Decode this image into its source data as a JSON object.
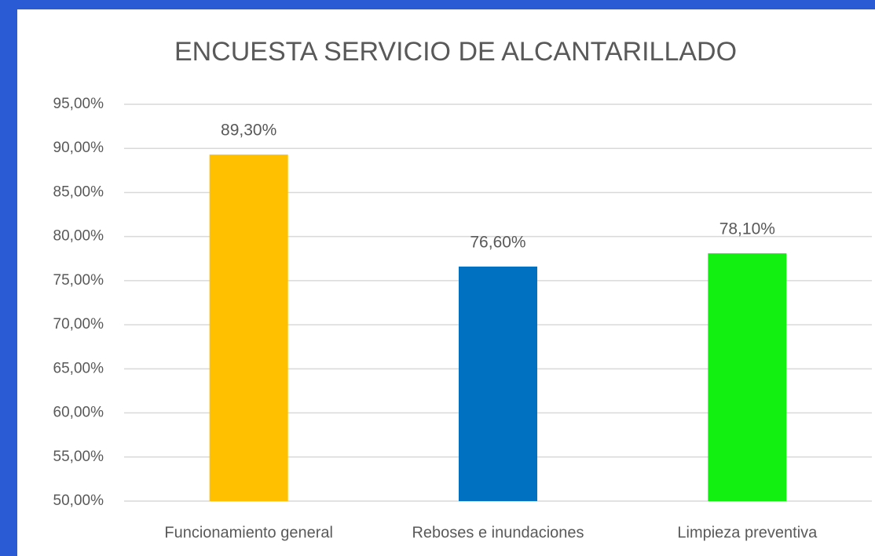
{
  "chart_data": {
    "type": "bar",
    "title": "ENCUESTA SERVICIO DE ALCANTARILLADO",
    "categories": [
      "Funcionamiento general",
      "Reboses e inundaciones",
      "Limpieza preventiva"
    ],
    "values": [
      89.3,
      76.6,
      78.1
    ],
    "value_labels": [
      "89,30%",
      "76,60%",
      "78,10%"
    ],
    "colors": [
      "#ffc000",
      "#0070c0",
      "#12f012"
    ],
    "ylim": [
      50,
      95
    ],
    "yticks": [
      {
        "value": 50,
        "label": "50,00%"
      },
      {
        "value": 55,
        "label": "55,00%"
      },
      {
        "value": 60,
        "label": "60,00%"
      },
      {
        "value": 65,
        "label": "65,00%"
      },
      {
        "value": 70,
        "label": "70,00%"
      },
      {
        "value": 75,
        "label": "75,00%"
      },
      {
        "value": 80,
        "label": "80,00%"
      },
      {
        "value": 85,
        "label": "85,00%"
      },
      {
        "value": 90,
        "label": "90,00%"
      },
      {
        "value": 95,
        "label": "95,00%"
      }
    ],
    "grid": true
  }
}
